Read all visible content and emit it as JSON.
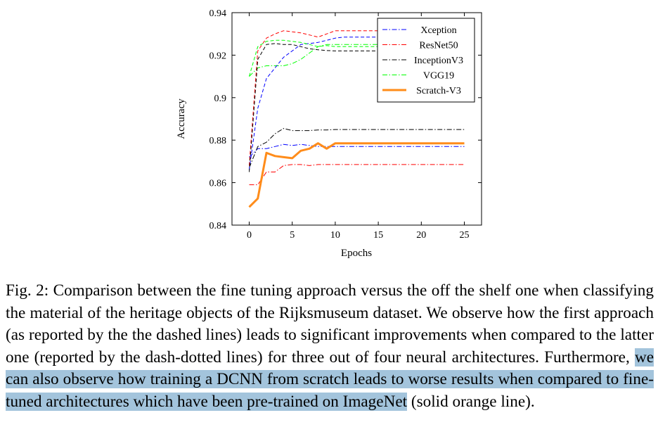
{
  "chart_data": {
    "type": "line",
    "xlabel": "Epochs",
    "ylabel": "Accuracy",
    "xlim": [
      -2,
      27
    ],
    "ylim": [
      0.84,
      0.94
    ],
    "xticks": [
      0,
      5,
      10,
      15,
      20,
      25
    ],
    "xtick_labels": [
      "0",
      "5",
      "10",
      "15",
      "20",
      "25"
    ],
    "yticks": [
      0.84,
      0.86,
      0.88,
      0.9,
      0.92,
      0.94
    ],
    "ytick_labels": [
      "0.84",
      "0.86",
      "0.88",
      "0.9",
      "0.92",
      "0.94"
    ],
    "grid": false,
    "legend_position": "top-right",
    "series": [
      {
        "name": "Xception",
        "color": "#0000ff",
        "dash": "dashdot",
        "width": 1,
        "in_legend": true,
        "x": [
          0,
          1,
          2,
          3,
          4,
          5,
          6,
          7,
          8,
          9,
          10,
          11,
          12,
          13,
          14,
          15,
          16,
          17,
          18,
          19,
          20,
          21,
          22,
          23,
          24,
          25
        ],
        "y": [
          0.872,
          0.876,
          0.876,
          0.877,
          0.878,
          0.8775,
          0.878,
          0.8775,
          0.877,
          0.877,
          0.877,
          0.877,
          0.877,
          0.877,
          0.877,
          0.877,
          0.877,
          0.877,
          0.877,
          0.877,
          0.877,
          0.877,
          0.877,
          0.877,
          0.877,
          0.877
        ]
      },
      {
        "name": "ResNet50",
        "color": "#ff0000",
        "dash": "dashdot",
        "width": 1,
        "in_legend": true,
        "x": [
          0,
          1,
          2,
          3,
          4,
          5,
          6,
          7,
          8,
          9,
          10,
          11,
          12,
          13,
          14,
          15,
          16,
          17,
          18,
          19,
          20,
          21,
          22,
          23,
          24,
          25
        ],
        "y": [
          0.859,
          0.859,
          0.865,
          0.865,
          0.868,
          0.8685,
          0.8685,
          0.868,
          0.8685,
          0.8685,
          0.8685,
          0.8685,
          0.8685,
          0.8685,
          0.8685,
          0.8685,
          0.8685,
          0.8685,
          0.8685,
          0.8685,
          0.8685,
          0.8685,
          0.8685,
          0.8685,
          0.8685,
          0.8685
        ]
      },
      {
        "name": "InceptionV3",
        "color": "#000000",
        "dash": "dashdot",
        "width": 1,
        "in_legend": true,
        "x": [
          0,
          1,
          2,
          3,
          4,
          5,
          6,
          7,
          8,
          9,
          10,
          11,
          12,
          13,
          14,
          15,
          16,
          17,
          18,
          19,
          20,
          21,
          22,
          23,
          24,
          25
        ],
        "y": [
          0.867,
          0.877,
          0.879,
          0.883,
          0.8855,
          0.8845,
          0.8845,
          0.8845,
          0.8848,
          0.8848,
          0.885,
          0.885,
          0.885,
          0.885,
          0.885,
          0.885,
          0.885,
          0.885,
          0.885,
          0.885,
          0.885,
          0.885,
          0.885,
          0.885,
          0.885,
          0.885
        ]
      },
      {
        "name": "VGG19",
        "color": "#00ff00",
        "dash": "dashdot",
        "width": 1,
        "in_legend": true,
        "x": [
          0,
          1,
          2,
          3,
          4,
          5,
          6,
          7,
          8,
          9,
          10,
          11,
          12,
          13,
          14,
          15,
          16,
          17,
          18,
          19,
          20,
          21,
          22,
          23,
          24,
          25
        ],
        "y": [
          0.91,
          0.914,
          0.915,
          0.915,
          0.915,
          0.916,
          0.918,
          0.921,
          0.924,
          0.925,
          0.925,
          0.925,
          0.925,
          0.925,
          0.925,
          0.925,
          0.925,
          0.925,
          0.925,
          0.925,
          0.925,
          0.925,
          0.925,
          0.925,
          0.925,
          0.925
        ]
      },
      {
        "name": "Scratch-V3",
        "color": "#ff8c1a",
        "dash": "solid",
        "width": 3,
        "in_legend": true,
        "x": [
          0,
          1,
          2,
          3,
          4,
          5,
          6,
          7,
          8,
          9,
          10,
          11,
          12,
          13,
          14,
          15,
          16,
          17,
          18,
          19,
          20,
          21,
          22,
          23,
          24,
          25
        ],
        "y": [
          0.8485,
          0.8525,
          0.874,
          0.8725,
          0.872,
          0.8715,
          0.875,
          0.876,
          0.8785,
          0.876,
          0.8785,
          0.8785,
          0.8785,
          0.8785,
          0.8785,
          0.8785,
          0.8785,
          0.8785,
          0.8785,
          0.8785,
          0.8785,
          0.8785,
          0.8785,
          0.8785,
          0.8785,
          0.8785
        ]
      },
      {
        "name": "",
        "color": "#0000ff",
        "dash": "dashed",
        "width": 1,
        "in_legend": false,
        "x": [
          0,
          1,
          2,
          3,
          4,
          5,
          6,
          7,
          8,
          9,
          10,
          11,
          12,
          13,
          14,
          15,
          16,
          17,
          18,
          19,
          20,
          21,
          22,
          23,
          24,
          25
        ],
        "y": [
          0.866,
          0.895,
          0.909,
          0.914,
          0.919,
          0.922,
          0.925,
          0.9255,
          0.926,
          0.927,
          0.928,
          0.9285,
          0.9285,
          0.9285,
          0.9285,
          0.9285,
          0.9285,
          0.9285,
          0.9285,
          0.9285,
          0.9285,
          0.9285,
          0.9285,
          0.9285,
          0.9285,
          0.9285
        ]
      },
      {
        "name": "",
        "color": "#ff0000",
        "dash": "dashed",
        "width": 1,
        "in_legend": false,
        "x": [
          0,
          1,
          2,
          3,
          4,
          5,
          6,
          7,
          8,
          9,
          10,
          11,
          12,
          13,
          14,
          15,
          16,
          17,
          18,
          19,
          20,
          21,
          22,
          23,
          24,
          25
        ],
        "y": [
          0.868,
          0.922,
          0.928,
          0.93,
          0.9315,
          0.931,
          0.9305,
          0.9295,
          0.9285,
          0.93,
          0.9315,
          0.9315,
          0.9315,
          0.9315,
          0.9315,
          0.9315,
          0.9315,
          0.9315,
          0.9315,
          0.9315,
          0.9315,
          0.9315,
          0.9315,
          0.9315,
          0.9315,
          0.9315
        ]
      },
      {
        "name": "",
        "color": "#000000",
        "dash": "dashed",
        "width": 1,
        "in_legend": false,
        "x": [
          0,
          1,
          2,
          3,
          4,
          5,
          6,
          7,
          8,
          9,
          10,
          11,
          12,
          13,
          14,
          15,
          16,
          17,
          18,
          19,
          20,
          21,
          22,
          23,
          24,
          25
        ],
        "y": [
          0.865,
          0.918,
          0.925,
          0.9255,
          0.925,
          0.925,
          0.924,
          0.923,
          0.9225,
          0.9222,
          0.922,
          0.922,
          0.922,
          0.922,
          0.922,
          0.922,
          0.922,
          0.922,
          0.922,
          0.922,
          0.922,
          0.922,
          0.922,
          0.922,
          0.922,
          0.922
        ]
      },
      {
        "name": "",
        "color": "#00ff00",
        "dash": "dashed",
        "width": 1,
        "in_legend": false,
        "x": [
          0,
          1,
          2,
          3,
          4,
          5,
          6,
          7,
          8,
          9,
          10,
          11,
          12,
          13,
          14,
          15,
          16,
          17,
          18,
          19,
          20,
          21,
          22,
          23,
          24,
          25
        ],
        "y": [
          0.91,
          0.924,
          0.9265,
          0.927,
          0.927,
          0.9265,
          0.926,
          0.925,
          0.924,
          0.9245,
          0.924,
          0.924,
          0.924,
          0.924,
          0.924,
          0.924,
          0.924,
          0.924,
          0.924,
          0.924,
          0.924,
          0.924,
          0.924,
          0.924,
          0.924,
          0.924
        ]
      }
    ]
  },
  "caption": {
    "before": "Fig. 2: Comparison between the fine tuning approach versus the off the shelf one when classifying the material of the heritage objects of the Rijksmuseum dataset. We observe how the first approach (as reported by the the dashed lines) leads to significant improvements when compared to the latter one (reported by the dash-dotted lines) for three out of four neural architectures. Furthermore, ",
    "highlighted": "we can also observe how training a DCNN from scratch leads to worse results when compared to fine-tuned architectures which have been pre-trained on ImageNet",
    "after": " (solid orange line).",
    "highlight_color": "#a3c4dc"
  }
}
